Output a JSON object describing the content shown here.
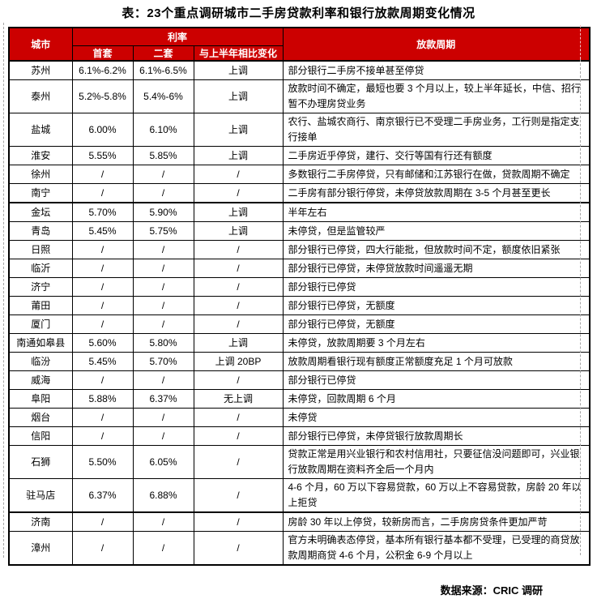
{
  "title": "表：23个重点调研城市二手房贷款利率和银行放款周期变化情况",
  "colors": {
    "header_bg": "#CC0000",
    "header_text": "#FFFFFF",
    "border": "#000000",
    "body_text": "#000000"
  },
  "table": {
    "headers": {
      "city": "城市",
      "rate_group": "利率",
      "first_home": "首套",
      "second_home": "二套",
      "change": "与上半年相比变化",
      "lending_cycle": "放款周期"
    },
    "rows": [
      {
        "city": "苏州",
        "first": "6.1%-6.2%",
        "second": "6.1%-6.5%",
        "change": "上调",
        "cycle": "部分银行二手房不接单甚至停贷"
      },
      {
        "city": "泰州",
        "first": "5.2%-5.8%",
        "second": "5.4%-6%",
        "change": "上调",
        "cycle": "放款时间不确定，最短也要 3 个月以上，较上半年延长，中信、招行暂不办理房贷业务"
      },
      {
        "city": "盐城",
        "first": "6.00%",
        "second": "6.10%",
        "change": "上调",
        "cycle": "农行、盐城农商行、南京银行已不受理二手房业务，工行则是指定支行接单"
      },
      {
        "city": "淮安",
        "first": "5.55%",
        "second": "5.85%",
        "change": "上调",
        "cycle": "二手房近乎停贷，建行、交行等国有行还有额度"
      },
      {
        "city": "徐州",
        "first": "/",
        "second": "/",
        "change": "/",
        "cycle": "多数银行二手房停贷，只有邮储和江苏银行在做，贷款周期不确定"
      },
      {
        "city": "南宁",
        "first": "/",
        "second": "/",
        "change": "/",
        "cycle": "二手房有部分银行停贷，未停贷放款周期在 3-5 个月甚至更长"
      },
      {
        "city": "金坛",
        "first": "5.70%",
        "second": "5.90%",
        "change": "上调",
        "cycle": "半年左右",
        "thick_top": true
      },
      {
        "city": "青岛",
        "first": "5.45%",
        "second": "5.75%",
        "change": "上调",
        "cycle": "未停贷，但是监管较严"
      },
      {
        "city": "日照",
        "first": "/",
        "second": "/",
        "change": "/",
        "cycle": "部分银行已停贷，四大行能批，但放款时间不定，额度依旧紧张"
      },
      {
        "city": "临沂",
        "first": "/",
        "second": "/",
        "change": "/",
        "cycle": "部分银行已停贷，未停贷放款时间遥遥无期"
      },
      {
        "city": "济宁",
        "first": "/",
        "second": "/",
        "change": "/",
        "cycle": "部分银行已停贷"
      },
      {
        "city": "莆田",
        "first": "/",
        "second": "/",
        "change": "/",
        "cycle": "部分银行已停贷，无额度"
      },
      {
        "city": "厦门",
        "first": "/",
        "second": "/",
        "change": "/",
        "cycle": "部分银行已停贷，无额度"
      },
      {
        "city": "南通如皋县",
        "first": "5.60%",
        "second": "5.80%",
        "change": "上调",
        "cycle": "未停贷，放款周期要 3 个月左右"
      },
      {
        "city": "临汾",
        "first": "5.45%",
        "second": "5.70%",
        "change": "上调 20BP",
        "cycle": "放款周期看银行现有额度正常额度充足 1 个月可放款"
      },
      {
        "city": "威海",
        "first": "/",
        "second": "/",
        "change": "/",
        "cycle": "部分银行已停贷"
      },
      {
        "city": "阜阳",
        "first": "5.88%",
        "second": "6.37%",
        "change": "无上调",
        "cycle": "未停贷，回款周期 6 个月"
      },
      {
        "city": "烟台",
        "first": "/",
        "second": "/",
        "change": "/",
        "cycle": "未停贷"
      },
      {
        "city": "信阳",
        "first": "/",
        "second": "/",
        "change": "/",
        "cycle": "部分银行已停贷，未停贷银行放款周期长"
      },
      {
        "city": "石狮",
        "first": "5.50%",
        "second": "6.05%",
        "change": "/",
        "cycle": "贷款正常是用兴业银行和农村信用社，只要征信没问题即可，兴业银行放款周期在资料齐全后一个月内"
      },
      {
        "city": "驻马店",
        "first": "6.37%",
        "second": "6.88%",
        "change": "/",
        "cycle": "4-6 个月，60 万以下容易贷款，60 万以上不容易贷款，房龄 20 年以上拒贷"
      },
      {
        "city": "济南",
        "first": "/",
        "second": "/",
        "change": "/",
        "cycle": "房龄 30 年以上停贷，较新房而言，二手房房贷条件更加严苛",
        "thick_top": true
      },
      {
        "city": "漳州",
        "first": "/",
        "second": "/",
        "change": "/",
        "cycle": "官方未明确表态停贷，基本所有银行基本都不受理，已受理的商贷放款周期商贷 4-6 个月，公积金 6-9 个月以上"
      }
    ]
  },
  "footer": {
    "source": "数据来源：CRIC 调研"
  }
}
